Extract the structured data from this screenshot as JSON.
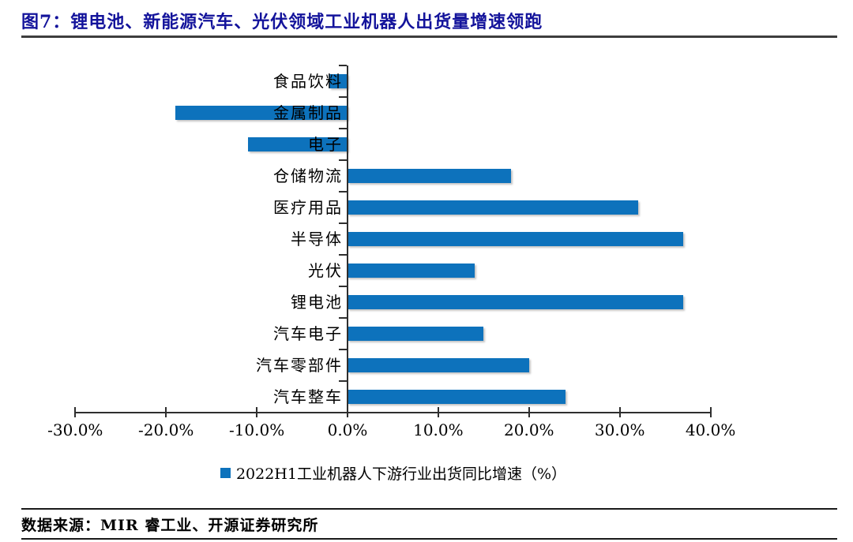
{
  "header": {
    "title": "图7：锂电池、新能源汽车、光伏领域工业机器人出货量增速领跑"
  },
  "chart_data": {
    "type": "bar",
    "orientation": "horizontal",
    "title": "图7：锂电池、新能源汽车、光伏领域工业机器人出货量增速领跑",
    "categories": [
      "食品饮料",
      "金属制品",
      "电子",
      "仓储物流",
      "医疗用品",
      "半导体",
      "光伏",
      "锂电池",
      "汽车电子",
      "汽车零部件",
      "汽车整车"
    ],
    "series": [
      {
        "name": "2022H1工业机器人下游行业出货同比增速（%）",
        "values": [
          -2,
          -19,
          -11,
          18,
          32,
          37,
          14,
          37,
          15,
          20,
          24
        ]
      }
    ],
    "xlabel": "",
    "ylabel": "",
    "xlim": [
      -30,
      40
    ],
    "xtick_step": 10,
    "xtick_labels": [
      "-30.0%",
      "-20.0%",
      "-10.0%",
      "0.0%",
      "10.0%",
      "20.0%",
      "30.0%",
      "40.0%"
    ],
    "grid": false,
    "legend_position": "bottom",
    "bar_color": "#0D72BC",
    "value_unit": "%"
  },
  "footer": {
    "source": "数据来源：MIR 睿工业、开源证券研究所"
  },
  "colors": {
    "title": "#13139B",
    "bar": "#0D72BC",
    "axis": "#2e2e2e",
    "rule": "#3d3d3d"
  }
}
